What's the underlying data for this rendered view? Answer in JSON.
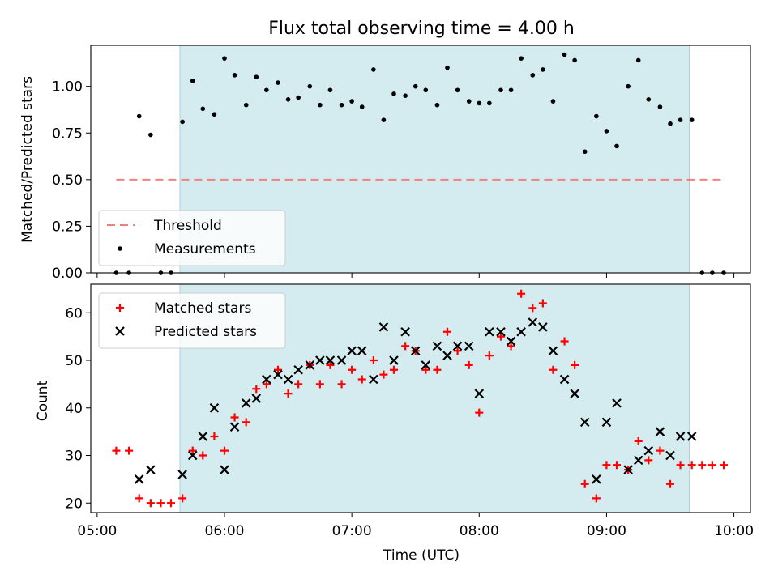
{
  "chart_data": [
    {
      "type": "scatter",
      "title": "Flux total observing time = 4.00 h",
      "xlabel": "",
      "ylabel": "Matched/Predicted stars",
      "ylim": [
        0,
        1.22
      ],
      "yticks": [
        "0.00",
        "0.25",
        "0.50",
        "0.75",
        "1.00"
      ],
      "ytick_values": [
        0,
        0.25,
        0.5,
        0.75,
        1.0
      ],
      "shaded_range": [
        5.65,
        9.65
      ],
      "shade_color": "#d4ebf0",
      "legend_position": "lower-left",
      "threshold": {
        "name": "Threshold",
        "value": 0.5,
        "x_range": [
          5.15,
          9.9
        ],
        "color": "#f08080"
      },
      "series": [
        {
          "name": "Measurements",
          "color": "#000000",
          "x": [
            5.15,
            5.25,
            5.33,
            5.42,
            5.5,
            5.58,
            5.67,
            5.75,
            5.83,
            5.92,
            6.0,
            6.08,
            6.17,
            6.25,
            6.33,
            6.42,
            6.5,
            6.58,
            6.67,
            6.75,
            6.83,
            6.92,
            7.0,
            7.08,
            7.17,
            7.25,
            7.33,
            7.42,
            7.5,
            7.58,
            7.67,
            7.75,
            7.83,
            7.92,
            8.0,
            8.08,
            8.17,
            8.25,
            8.33,
            8.42,
            8.5,
            8.58,
            8.67,
            8.75,
            8.83,
            8.92,
            9.0,
            9.08,
            9.17,
            9.25,
            9.33,
            9.42,
            9.5,
            9.58,
            9.67,
            9.75,
            9.83,
            9.92
          ],
          "y": [
            0.0,
            0.0,
            0.84,
            0.74,
            0.0,
            0.0,
            0.81,
            1.03,
            0.88,
            0.85,
            1.15,
            1.06,
            0.9,
            1.05,
            0.98,
            1.02,
            0.93,
            0.94,
            1.0,
            0.9,
            0.98,
            0.9,
            0.92,
            0.89,
            1.09,
            0.82,
            0.96,
            0.95,
            1.0,
            0.98,
            0.9,
            1.1,
            0.98,
            0.92,
            0.91,
            0.91,
            0.98,
            0.98,
            1.15,
            1.06,
            1.09,
            0.92,
            1.17,
            1.14,
            0.65,
            0.84,
            0.76,
            0.68,
            1.0,
            1.14,
            0.93,
            0.89,
            0.8,
            0.82,
            0.82,
            0.0,
            0.0,
            0.0
          ]
        }
      ]
    },
    {
      "type": "scatter",
      "title": "",
      "xlabel": "Time (UTC)",
      "ylabel": "Count",
      "xlim": [
        4.95,
        10.13
      ],
      "ylim": [
        18,
        66
      ],
      "xticks": [
        "05:00",
        "06:00",
        "07:00",
        "08:00",
        "09:00",
        "10:00"
      ],
      "xtick_values": [
        5,
        6,
        7,
        8,
        9,
        10
      ],
      "yticks": [
        "20",
        "30",
        "40",
        "50",
        "60"
      ],
      "ytick_values": [
        20,
        30,
        40,
        50,
        60
      ],
      "shaded_range": [
        5.65,
        9.65
      ],
      "shade_color": "#d4ebf0",
      "legend_position": "top-left",
      "series": [
        {
          "name": "Matched stars",
          "color": "#ff0000",
          "marker": "plus",
          "x": [
            5.15,
            5.25,
            5.33,
            5.42,
            5.5,
            5.58,
            5.67,
            5.75,
            5.83,
            5.92,
            6.0,
            6.08,
            6.17,
            6.25,
            6.33,
            6.42,
            6.5,
            6.58,
            6.67,
            6.75,
            6.83,
            6.92,
            7.0,
            7.08,
            7.17,
            7.25,
            7.33,
            7.42,
            7.5,
            7.58,
            7.67,
            7.75,
            7.83,
            7.92,
            8.0,
            8.08,
            8.17,
            8.25,
            8.33,
            8.42,
            8.5,
            8.58,
            8.67,
            8.75,
            8.83,
            8.92,
            9.0,
            9.08,
            9.17,
            9.25,
            9.33,
            9.42,
            9.5,
            9.58,
            9.67,
            9.75,
            9.83,
            9.92
          ],
          "y": [
            31,
            31,
            21,
            20,
            20,
            20,
            21,
            31,
            30,
            34,
            31,
            38,
            37,
            44,
            45,
            48,
            43,
            45,
            49,
            45,
            49,
            45,
            48,
            46,
            50,
            47,
            48,
            53,
            52,
            48,
            48,
            56,
            52,
            49,
            39,
            51,
            55,
            53,
            64,
            61,
            62,
            48,
            54,
            49,
            24,
            21,
            28,
            28,
            27,
            33,
            29,
            31,
            24,
            28,
            28,
            28,
            28,
            28
          ]
        },
        {
          "name": "Predicted stars",
          "color": "#000000",
          "marker": "x",
          "x": [
            5.33,
            5.42,
            5.67,
            5.75,
            5.83,
            5.92,
            6.0,
            6.08,
            6.17,
            6.25,
            6.33,
            6.42,
            6.5,
            6.58,
            6.67,
            6.75,
            6.83,
            6.92,
            7.0,
            7.08,
            7.17,
            7.25,
            7.33,
            7.42,
            7.5,
            7.58,
            7.67,
            7.75,
            7.83,
            7.92,
            8.0,
            8.08,
            8.17,
            8.25,
            8.33,
            8.42,
            8.5,
            8.58,
            8.67,
            8.75,
            8.83,
            8.92,
            9.0,
            9.08,
            9.17,
            9.25,
            9.33,
            9.42,
            9.5,
            9.58,
            9.67
          ],
          "y": [
            25,
            27,
            26,
            30,
            34,
            40,
            27,
            36,
            41,
            42,
            46,
            47,
            46,
            48,
            49,
            50,
            50,
            50,
            52,
            52,
            46,
            57,
            50,
            56,
            52,
            49,
            53,
            51,
            53,
            53,
            43,
            56,
            56,
            54,
            56,
            58,
            57,
            52,
            46,
            43,
            37,
            25,
            37,
            41,
            27,
            29,
            31,
            35,
            30,
            34,
            34
          ]
        }
      ]
    }
  ]
}
